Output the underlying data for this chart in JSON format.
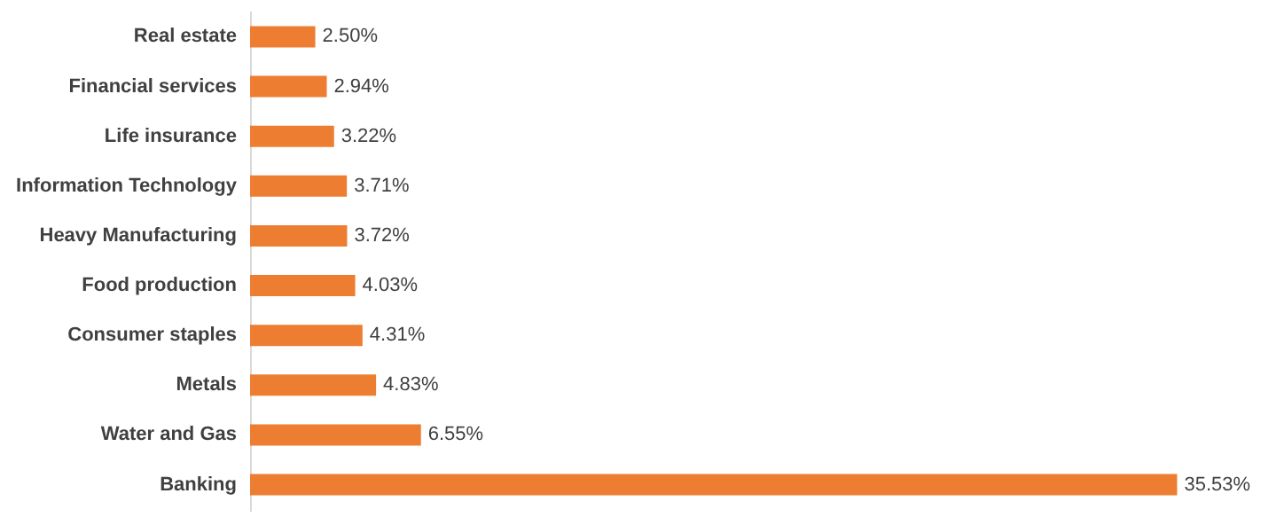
{
  "chart_data": {
    "type": "bar",
    "orientation": "horizontal",
    "categories": [
      "Real estate",
      "Financial services",
      "Life insurance",
      "Information Technology",
      "Heavy Manufacturing",
      "Food production",
      "Consumer staples",
      "Metals",
      "Water and Gas",
      "Banking"
    ],
    "values": [
      2.5,
      2.94,
      3.22,
      3.71,
      3.72,
      4.03,
      4.31,
      4.83,
      6.55,
      35.53
    ],
    "value_labels": [
      "2.50%",
      "2.94%",
      "3.22%",
      "3.71%",
      "3.72%",
      "4.03%",
      "4.31%",
      "4.83%",
      "6.55%",
      "35.53%"
    ],
    "color": "#ed7d31"
  }
}
